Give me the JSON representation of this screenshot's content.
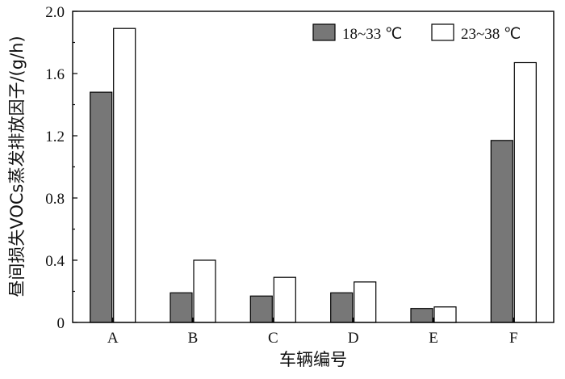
{
  "chart_data": {
    "type": "bar",
    "categories": [
      "A",
      "B",
      "C",
      "D",
      "E",
      "F"
    ],
    "series": [
      {
        "name": "18~33 ℃",
        "color": "#777777",
        "values": [
          1.48,
          0.19,
          0.17,
          0.19,
          0.09,
          1.17
        ]
      },
      {
        "name": "23~38 ℃",
        "color": "#ffffff",
        "values": [
          1.89,
          0.4,
          0.29,
          0.26,
          0.1,
          1.67
        ]
      }
    ],
    "xlabel": "车辆编号",
    "ylabel": "昼间损失VOCs蒸发排放因子/(g/h)",
    "ylim": [
      0,
      2.0
    ],
    "yticks": [
      0,
      0.4,
      0.8,
      1.2,
      1.6,
      2.0
    ],
    "ytick_labels": [
      "0",
      "0.4",
      "0.8",
      "1.2",
      "1.6",
      "2.0"
    ],
    "legend_position": "top-right",
    "grid": false
  }
}
